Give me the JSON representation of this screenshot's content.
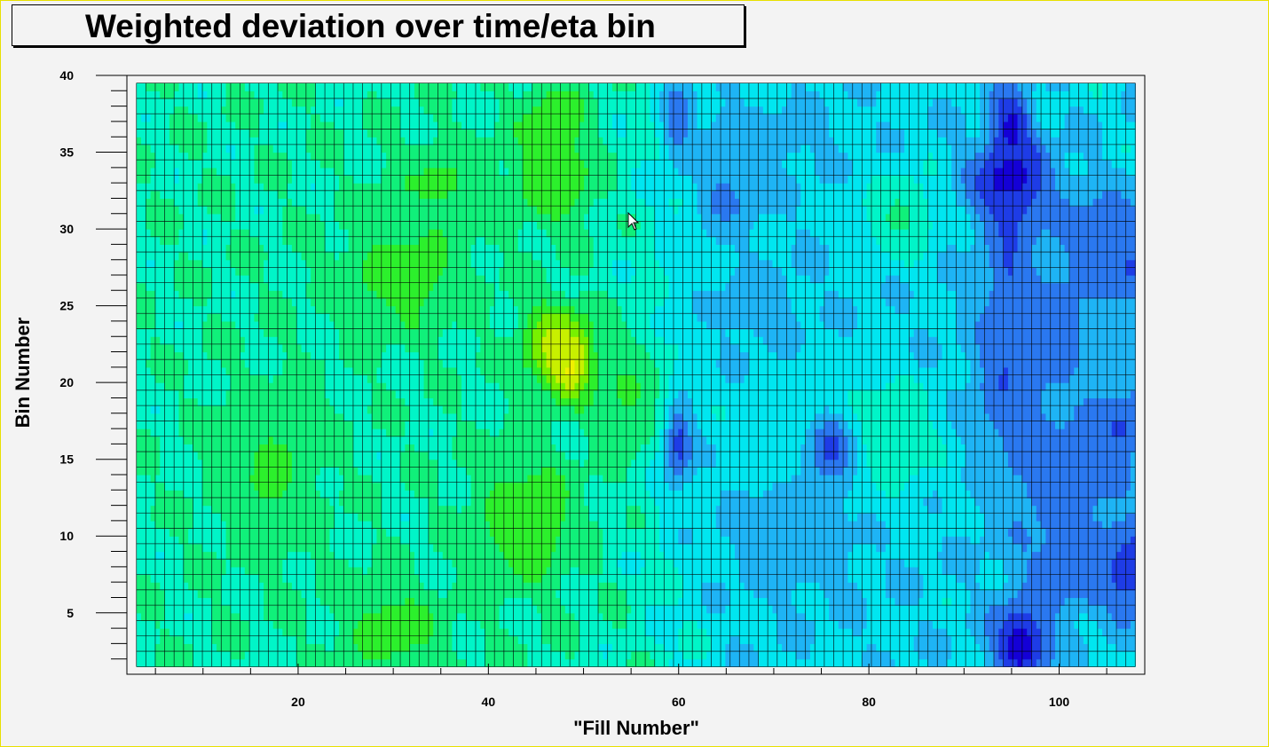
{
  "chart_data": {
    "type": "heatmap",
    "title": "Weighted deviation over time/eta bin",
    "xlabel": "\"Fill Number\"",
    "ylabel": "Bin Number",
    "xlim": [
      2,
      109
    ],
    "ylim": [
      1,
      40
    ],
    "x_range": [
      3,
      108
    ],
    "y_range": [
      1.5,
      39.5
    ],
    "x_ticks": [
      20,
      40,
      60,
      80,
      100
    ],
    "y_ticks": [
      5,
      10,
      15,
      20,
      25,
      30,
      35,
      40
    ],
    "x_ticks_labels": [
      "20",
      "40",
      "60",
      "80",
      "100"
    ],
    "y_ticks_labels": [
      "5",
      "10",
      "15",
      "20",
      "25",
      "30",
      "35",
      "40"
    ],
    "grid": true,
    "colormap": [
      "#1400d6",
      "#1e3ce6",
      "#2a78f0",
      "#1eb4f5",
      "#00e6f0",
      "#00f5c8",
      "#10f07a",
      "#2cf02c",
      "#78f000",
      "#c8f000",
      "#f0f000",
      "#ff9600",
      "#ff1e00"
    ],
    "baseline": 0.45,
    "features": [
      {
        "x": 48.5,
        "y": 21.5,
        "v": 1.0,
        "sx": 1.6,
        "sy": 1.4
      },
      {
        "x": 47,
        "y": 22.5,
        "v": 0.72,
        "sx": 2.5,
        "sy": 2.0
      },
      {
        "x": 47,
        "y": 33,
        "v": 0.62,
        "sx": 3,
        "sy": 2
      },
      {
        "x": 47,
        "y": 37,
        "v": 0.6,
        "sx": 2.5,
        "sy": 2
      },
      {
        "x": 44,
        "y": 11,
        "v": 0.6,
        "sx": 4,
        "sy": 3
      },
      {
        "x": 30,
        "y": 4,
        "v": 0.58,
        "sx": 4,
        "sy": 2
      },
      {
        "x": 31,
        "y": 27,
        "v": 0.58,
        "sx": 5,
        "sy": 2.5
      },
      {
        "x": 35,
        "y": 33,
        "v": 0.55,
        "sx": 4,
        "sy": 2
      },
      {
        "x": 55,
        "y": 20,
        "v": 0.58,
        "sx": 3,
        "sy": 3
      },
      {
        "x": 17,
        "y": 14,
        "v": 0.55,
        "sx": 4,
        "sy": 4
      },
      {
        "x": 78,
        "y": 16,
        "v": 0.55,
        "sx": 6,
        "sy": 3
      },
      {
        "x": 83,
        "y": 31,
        "v": 0.5,
        "sx": 3,
        "sy": 2
      },
      {
        "x": 96,
        "y": 3,
        "v": 0.02,
        "sx": 2.2,
        "sy": 2
      },
      {
        "x": 95,
        "y": 33,
        "v": 0.0,
        "sx": 3,
        "sy": 2
      },
      {
        "x": 95,
        "y": 36.5,
        "v": 0.05,
        "sx": 1.5,
        "sy": 2
      },
      {
        "x": 95,
        "y": 27,
        "v": 0.06,
        "sx": 1.5,
        "sy": 4
      },
      {
        "x": 95,
        "y": 20.5,
        "v": 0.05,
        "sx": 2.2,
        "sy": 3
      },
      {
        "x": 107,
        "y": 28,
        "v": 0.05,
        "sx": 2,
        "sy": 2
      },
      {
        "x": 108,
        "y": 8,
        "v": 0.05,
        "sx": 3,
        "sy": 2
      },
      {
        "x": 106,
        "y": 17,
        "v": 0.06,
        "sx": 2,
        "sy": 1.5
      },
      {
        "x": 76,
        "y": 15.5,
        "v": 0.05,
        "sx": 2.2,
        "sy": 2
      },
      {
        "x": 60,
        "y": 16,
        "v": 0.1,
        "sx": 1.2,
        "sy": 2
      },
      {
        "x": 60,
        "y": 37,
        "v": 0.1,
        "sx": 1.2,
        "sy": 2
      },
      {
        "x": 65,
        "y": 32,
        "v": 0.12,
        "sx": 2,
        "sy": 1.5
      },
      {
        "x": 65,
        "y": 35.5,
        "v": 0.12,
        "sx": 1.2,
        "sy": 1.5
      },
      {
        "x": 102,
        "y": 8,
        "v": 0.15,
        "sx": 4,
        "sy": 2
      },
      {
        "x": 104,
        "y": 30,
        "v": 0.2,
        "sx": 4,
        "sy": 2
      },
      {
        "x": 100,
        "y": 14,
        "v": 0.2,
        "sx": 6,
        "sy": 4
      },
      {
        "x": 100,
        "y": 24,
        "v": 0.22,
        "sx": 6,
        "sy": 5
      },
      {
        "x": 72,
        "y": 10,
        "v": 0.28,
        "sx": 8,
        "sy": 4
      },
      {
        "x": 68,
        "y": 25,
        "v": 0.3,
        "sx": 8,
        "sy": 4
      },
      {
        "x": 70,
        "y": 36,
        "v": 0.3,
        "sx": 8,
        "sy": 3
      }
    ]
  }
}
